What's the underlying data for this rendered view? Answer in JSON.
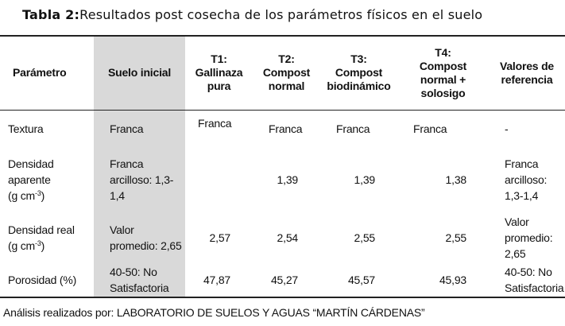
{
  "header": {
    "label": "Tabla 2",
    "separator": ":",
    "title": "Resultados post cosecha de los parámetros físicos en el suelo"
  },
  "table": {
    "columns": [
      {
        "lines": [
          "Parámetro"
        ]
      },
      {
        "lines": [
          "Suelo inicial"
        ]
      },
      {
        "lines": [
          "T1:",
          "Gallinaza",
          "pura"
        ]
      },
      {
        "lines": [
          "T2:",
          "Compost",
          "normal"
        ]
      },
      {
        "lines": [
          "T3:",
          "Compost",
          "biodinámico"
        ]
      },
      {
        "lines": [
          "T4:",
          "Compost",
          "normal +",
          "solosigo"
        ]
      },
      {
        "lines": [
          "Valores de",
          "referencia"
        ]
      }
    ],
    "rows": [
      {
        "parameter": "Textura",
        "cells": [
          "Franca",
          "Franca",
          "Franca",
          "Franca",
          "Franca",
          "-"
        ]
      },
      {
        "parameter": "Densidad aparente",
        "unit": {
          "base": "(g cm",
          "sup": "-3",
          "close": ")"
        },
        "cells": [
          "Franca arcilloso: 1,3-1,4",
          null,
          "1,39",
          "1,39",
          "1,38",
          "Franca arcilloso: 1,3-1,4"
        ]
      },
      {
        "parameter": "Densidad real",
        "unit": {
          "base": "(g cm",
          "sup": "-3",
          "close": ")"
        },
        "cells": [
          "Valor promedio: 2,65",
          "2,57",
          "2,54",
          "2,55",
          "2,55",
          "Valor promedio: 2,65"
        ]
      },
      {
        "parameter": "Porosidad (%)",
        "cells": [
          "40-50: No Satisfactoria",
          "47,87",
          "45,27",
          "45,57",
          "45,93",
          "40-50: No Satisfactoria"
        ]
      }
    ]
  },
  "footnote": "Análisis realizados por: LABORATORIO DE SUELOS Y AGUAS “MARTÍN CÁRDENAS”"
}
